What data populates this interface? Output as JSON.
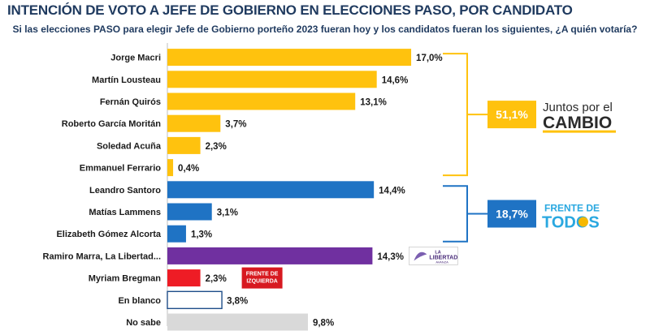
{
  "title": "INTENCIÓN DE VOTO A JEFE DE GOBIERNO EN ELECCIONES PASO, POR CANDIDATO",
  "subtitle": "Si las elecciones PASO para elegir Jefe de Gobierno porteño 2023 fueran hoy y los candidatos fueran los siguientes, ¿A quién votaría?",
  "chart_data": {
    "type": "bar",
    "orientation": "horizontal",
    "unit": "%",
    "xlim": [
      0,
      18
    ],
    "categories": [
      "Jorge Macri",
      "Martín Lousteau",
      "Fernán Quirós",
      "Roberto García Moritán",
      "Soledad Acuña",
      "Emmanuel Ferrario",
      "Leandro Santoro",
      "Matías Lammens",
      "Elizabeth Gómez Alcorta",
      "Ramiro Marra, La Libertad...",
      "Myriam Bregman",
      "En blanco",
      "No sabe"
    ],
    "values": [
      17.0,
      14.6,
      13.1,
      3.7,
      2.3,
      0.4,
      14.4,
      3.1,
      1.3,
      14.3,
      2.3,
      3.8,
      9.8
    ],
    "value_labels": [
      "17,0%",
      "14,6%",
      "13,1%",
      "3,7%",
      "2,3%",
      "0,4%",
      "14,4%",
      "3,1%",
      "1,3%",
      "14,3%",
      "2,3%",
      "3,8%",
      "9,8%"
    ],
    "bar_colors": [
      "#ffc20e",
      "#ffc20e",
      "#ffc20e",
      "#ffc20e",
      "#ffc20e",
      "#ffc20e",
      "#1f73c4",
      "#1f73c4",
      "#1f73c4",
      "#7030a0",
      "#ee1c25",
      "#ffffff",
      "#d9d9d9"
    ],
    "bar_outlines": [
      "",
      "",
      "",
      "",
      "",
      "",
      "",
      "",
      "",
      "",
      "",
      "#1f4e89",
      ""
    ],
    "groups": [
      {
        "name": "Juntos por el CAMBIO",
        "logo_top": "Juntos por el",
        "logo_bottom": "CAMBIO",
        "total": "51,1%",
        "color": "#ffc20e",
        "from": 0,
        "to": 5
      },
      {
        "name": "FRENTE DE TODOS",
        "logo_top": "FRENTE DE",
        "logo_bottom": "TODOS",
        "total": "18,7%",
        "color": "#1f73c4",
        "from": 6,
        "to": 8
      }
    ],
    "inline_logos": [
      {
        "row": 9,
        "text_top": "LA",
        "text_bottom": "LIBERTAD",
        "text_small": "AVANZA"
      },
      {
        "row": 10,
        "text_top": "FRENTE DE",
        "text_bottom": "IZQUIERDA"
      }
    ]
  }
}
